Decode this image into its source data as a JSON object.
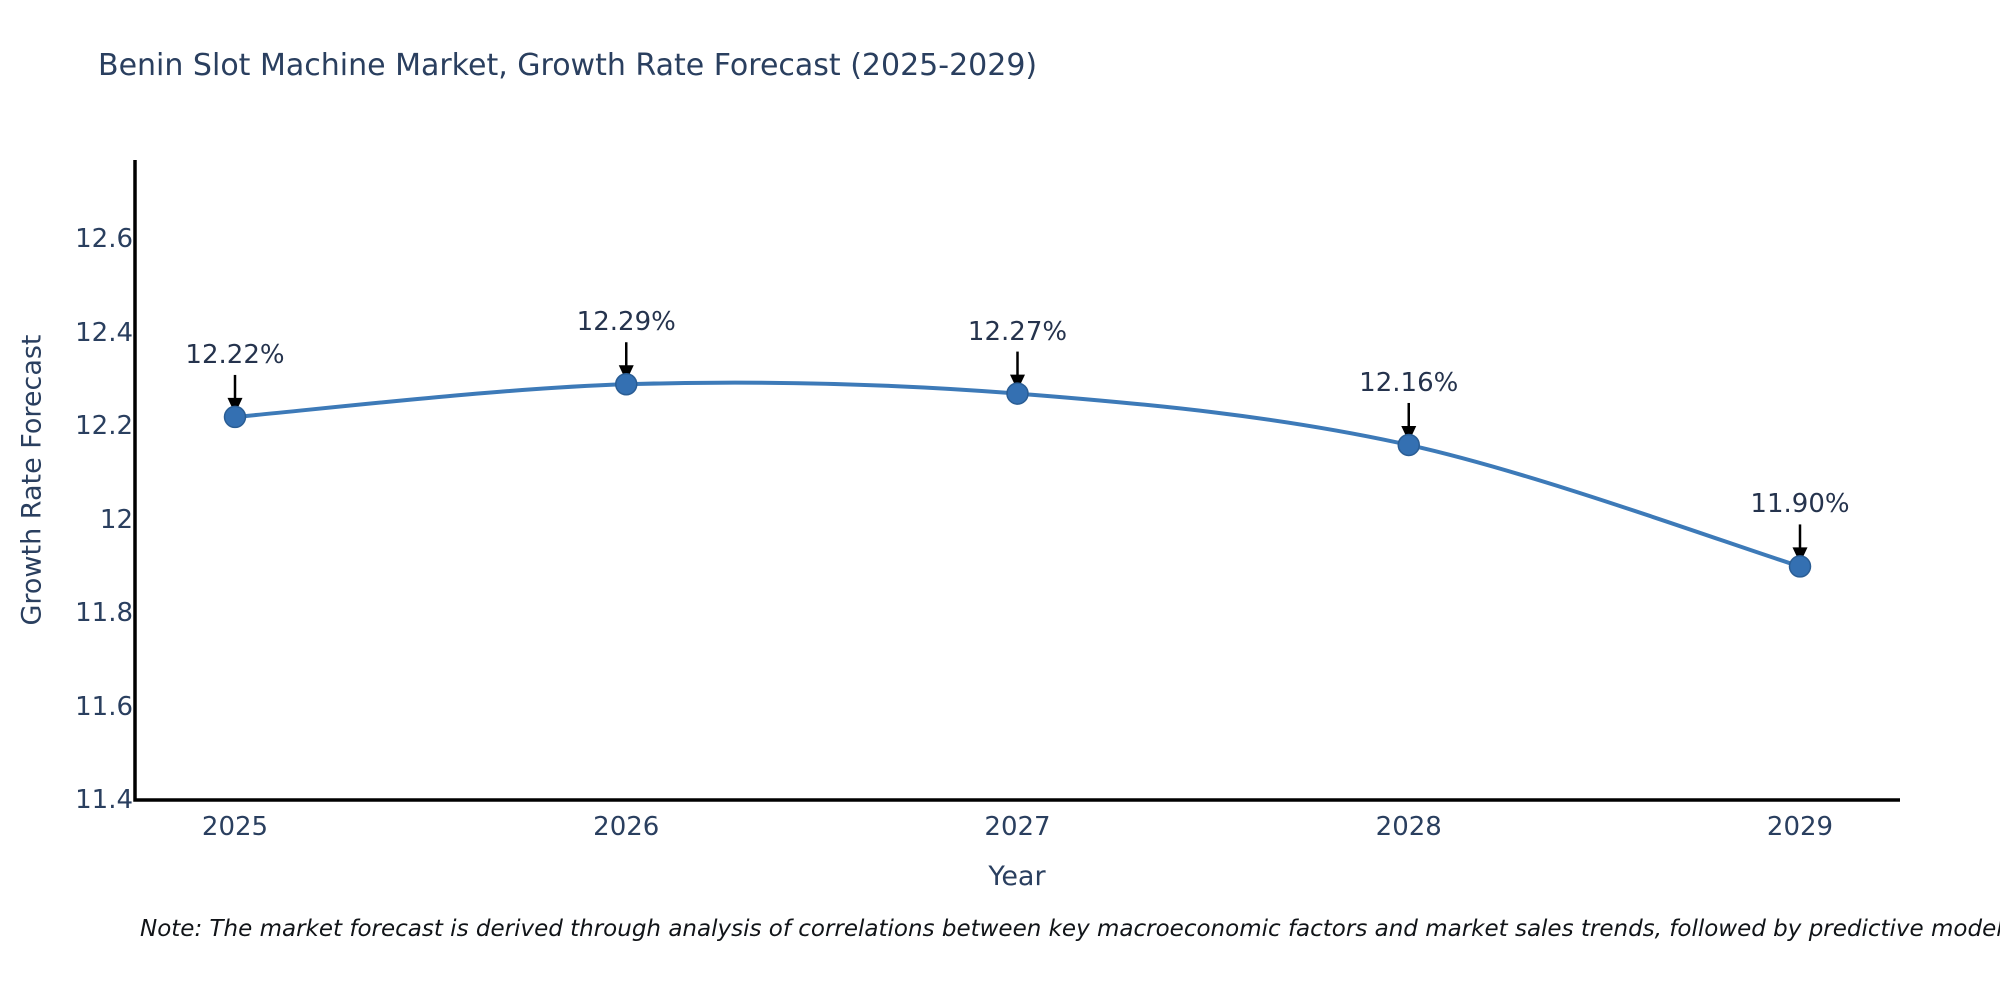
{
  "header": {
    "title": "Benin Slot Machine Market, Growth Rate Forecast (2025-2029)"
  },
  "chart_data": {
    "type": "line",
    "title": "Benin Slot Machine Market, Growth Rate Forecast (2025-2029)",
    "categories": [
      "2025",
      "2026",
      "2027",
      "2028",
      "2029"
    ],
    "values": [
      12.22,
      12.29,
      12.27,
      12.16,
      11.9
    ],
    "point_labels": [
      "12.22%",
      "12.29%",
      "12.27%",
      "12.16%",
      "11.90%"
    ],
    "xlabel": "Year",
    "ylabel": "Growth Rate Forecast",
    "ylim": [
      11.4,
      12.77
    ],
    "ytick_values": [
      11.4,
      11.6,
      11.8,
      12.0,
      12.2,
      12.4,
      12.6
    ],
    "ytick_labels": [
      "11.4",
      "11.6",
      "11.8",
      "12",
      "12.2",
      "12.4",
      "12.6"
    ],
    "grid": false,
    "legend": "none",
    "line_shape": "spline",
    "line_color": "#3d7ab8",
    "marker_color": "#3470b2",
    "marker_edge_color": "#2a5d94",
    "axis_color": "#000000",
    "annotation_arrow_color": "#000000",
    "text_color": "#2a3f5f"
  },
  "note": {
    "text": "Note: The market forecast is derived through analysis of correlations between key macroeconomic factors and market sales trends, followed by predictive modeling to project future sal"
  }
}
